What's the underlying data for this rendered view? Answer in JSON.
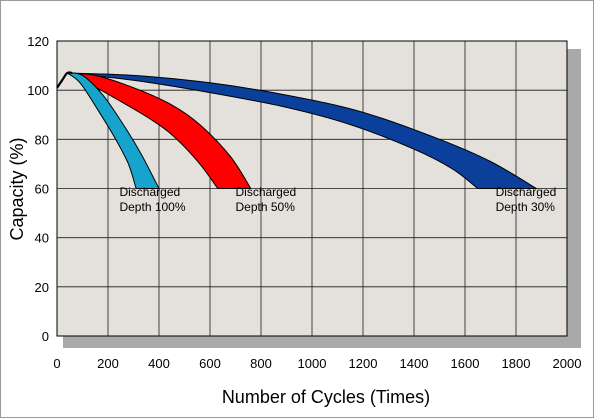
{
  "chart_data": {
    "type": "area",
    "xlabel": "Number of Cycles (Times)",
    "ylabel": "Capacity (%)",
    "xlim": [
      0,
      2000
    ],
    "ylim": [
      0,
      120
    ],
    "x_ticks": [
      0,
      200,
      400,
      600,
      800,
      1000,
      1200,
      1400,
      1600,
      1800,
      2000
    ],
    "y_ticks": [
      0,
      20,
      40,
      60,
      80,
      100,
      120
    ],
    "grid": true,
    "legend": "none",
    "plot_background": "#e4e0dc",
    "series": [
      {
        "name": "Discharged Depth 100%",
        "color": "#16a3cc",
        "upper": [
          [
            40,
            107
          ],
          [
            100,
            106
          ],
          [
            180,
            98
          ],
          [
            260,
            86
          ],
          [
            330,
            74
          ],
          [
            400,
            60
          ]
        ],
        "lower": [
          [
            40,
            107
          ],
          [
            90,
            103
          ],
          [
            160,
            92
          ],
          [
            230,
            80
          ],
          [
            280,
            70
          ],
          [
            310,
            60
          ]
        ]
      },
      {
        "name": "Discharged Depth 50%",
        "color": "#ff0000",
        "upper": [
          [
            40,
            107
          ],
          [
            150,
            106
          ],
          [
            300,
            101
          ],
          [
            450,
            94
          ],
          [
            560,
            86
          ],
          [
            680,
            73
          ],
          [
            760,
            60
          ]
        ],
        "lower": [
          [
            40,
            107
          ],
          [
            120,
            103
          ],
          [
            240,
            96
          ],
          [
            370,
            88
          ],
          [
            460,
            81
          ],
          [
            560,
            70
          ],
          [
            630,
            60
          ]
        ]
      },
      {
        "name": "Discharged Depth 30%",
        "color": "#0a3f9b",
        "upper": [
          [
            40,
            107
          ],
          [
            300,
            106
          ],
          [
            600,
            103
          ],
          [
            900,
            98
          ],
          [
            1200,
            91
          ],
          [
            1500,
            80
          ],
          [
            1700,
            71
          ],
          [
            1880,
            60
          ]
        ],
        "lower": [
          [
            40,
            107
          ],
          [
            300,
            104
          ],
          [
            600,
            99
          ],
          [
            900,
            93
          ],
          [
            1150,
            86
          ],
          [
            1400,
            76
          ],
          [
            1550,
            68
          ],
          [
            1650,
            60
          ]
        ]
      }
    ],
    "start_curve": [
      [
        0,
        101
      ],
      [
        20,
        104
      ],
      [
        40,
        107
      ],
      [
        60,
        107
      ]
    ],
    "annotations": [
      {
        "line1": "Discharged",
        "line2": "Depth 100%",
        "x": 245,
        "y": 57
      },
      {
        "line1": "Discharged",
        "line2": "Depth 50%",
        "x": 700,
        "y": 57
      },
      {
        "line1": "Discharged",
        "line2": "Depth 30%",
        "x": 1720,
        "y": 57
      }
    ]
  }
}
